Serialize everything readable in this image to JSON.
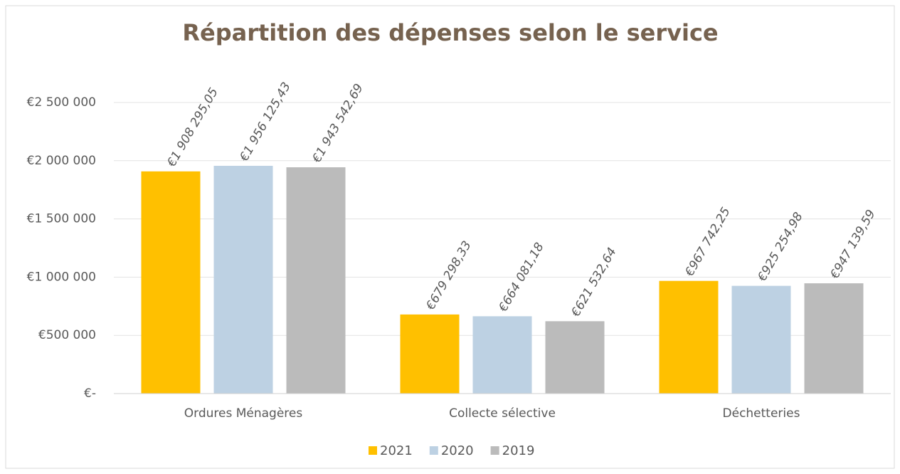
{
  "chart_data": {
    "type": "bar",
    "title": "Répartition des dépenses selon le service",
    "categories": [
      "Ordures Ménagères",
      "Collecte sélective",
      "Déchetteries"
    ],
    "series": [
      {
        "name": "2021",
        "color": "#ffc000",
        "values": [
          1908295.05,
          679298.33,
          967742.25
        ],
        "value_labels": [
          "€1 908 295,05",
          "€679 298,33",
          "€967 742,25"
        ]
      },
      {
        "name": "2020",
        "color": "#bdd1e3",
        "values": [
          1956125.43,
          664081.18,
          925254.98
        ],
        "value_labels": [
          "€1 956 125,43",
          "€664 081,18",
          "€925 254,98"
        ]
      },
      {
        "name": "2019",
        "color": "#bbbbbb",
        "values": [
          1943542.69,
          621532.64,
          947139.59
        ],
        "value_labels": [
          "€1 943 542,69",
          "€621 532,64",
          "€947 139,59"
        ]
      }
    ],
    "ylim": [
      0,
      2500000
    ],
    "yticks": [
      {
        "value": 0,
        "label": "€-"
      },
      {
        "value": 500000,
        "label": "€500 000"
      },
      {
        "value": 1000000,
        "label": "€1 000 000"
      },
      {
        "value": 1500000,
        "label": "€1 500 000"
      },
      {
        "value": 2000000,
        "label": "€2 000 000"
      },
      {
        "value": 2500000,
        "label": "€2 500 000"
      }
    ],
    "grid": true,
    "legend": "bottom"
  }
}
